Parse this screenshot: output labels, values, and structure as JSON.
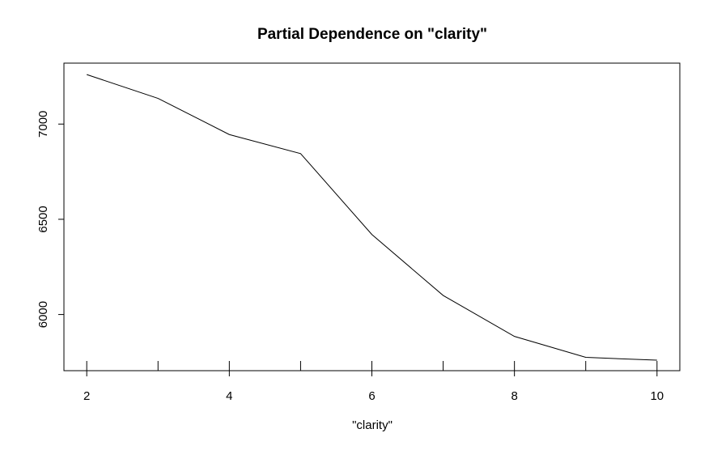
{
  "chart_data": {
    "type": "line",
    "title": "Partial Dependence on \"clarity\"",
    "xlabel": "\"clarity\"",
    "ylabel": "",
    "x": [
      2,
      3,
      4,
      5,
      6,
      7,
      8,
      9,
      10
    ],
    "series": [
      {
        "values": [
          7260,
          7135,
          6945,
          6845,
          6420,
          6100,
          5885,
          5775,
          5760
        ]
      }
    ],
    "xlim": [
      1.68,
      10.32
    ],
    "ylim": [
      5705,
      7320
    ],
    "xticks": [
      2,
      4,
      6,
      8,
      10
    ],
    "xtick_labels": [
      "2",
      "4",
      "6",
      "8",
      "10"
    ],
    "yticks": [
      6000,
      6500,
      7000
    ],
    "ytick_labels": [
      "6000",
      "6500",
      "7000"
    ],
    "rug": [
      2,
      3,
      4,
      5,
      6,
      7,
      8,
      9,
      10
    ],
    "line_color": "#000000",
    "grid": false,
    "legend": "none"
  }
}
